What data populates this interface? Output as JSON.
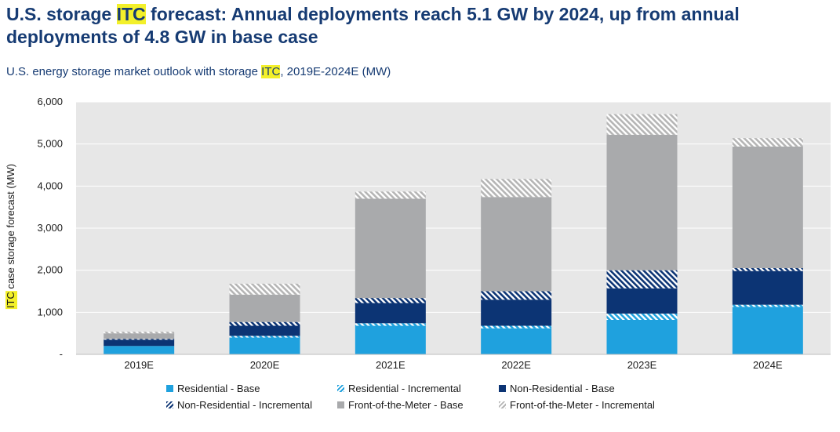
{
  "header": {
    "title_pre": "U.S. storage ",
    "title_hl": "ITC",
    "title_post": " forecast: Annual deployments reach 5.1 GW by 2024, up from annual deployments of 4.8 GW in base case",
    "subtitle_pre": "U.S. energy storage market outlook with storage ",
    "subtitle_hl": "ITC",
    "subtitle_post": ", 2019E-2024E (MW)"
  },
  "colors": {
    "title_text": "#163b73",
    "highlight": "#f3f02a",
    "plot_bg": "#e7e7e7",
    "residential": "#1fa1de",
    "non_residential": "#0c3474",
    "ftm_base": "#a9aaac",
    "ftm_incremental": "#c9c9c9"
  },
  "chart_data": {
    "type": "bar",
    "stacked": true,
    "title": "U.S. energy storage market outlook with storage ITC, 2019E-2024E (MW)",
    "ylabel_hl": "ITC",
    "ylabel_rest": " case storage forecast (MW)",
    "categories": [
      "2019E",
      "2020E",
      "2021E",
      "2022E",
      "2023E",
      "2024E"
    ],
    "ylim": [
      0,
      6000
    ],
    "yticks": [
      0,
      1000,
      2000,
      3000,
      4000,
      5000,
      6000
    ],
    "ytick_labels": [
      "-",
      "1,000",
      "2,000",
      "3,000",
      "4,000",
      "5,000",
      "6,000"
    ],
    "grid": true,
    "legend_position": "bottom",
    "series": [
      {
        "name": "Residential - Base",
        "color": "#1fa1de",
        "pattern": "solid",
        "values": [
          200,
          400,
          680,
          620,
          820,
          1130
        ]
      },
      {
        "name": "Residential - Incremental",
        "color": "#1fa1de",
        "pattern": "hatch",
        "values": [
          0,
          40,
          60,
          60,
          150,
          50
        ]
      },
      {
        "name": "Non-Residential - Base",
        "color": "#0c3474",
        "pattern": "solid",
        "values": [
          150,
          240,
          480,
          620,
          600,
          800
        ]
      },
      {
        "name": "Non-Residential - Incremental",
        "color": "#0c3474",
        "pattern": "hatch",
        "values": [
          20,
          90,
          120,
          200,
          430,
          70
        ]
      },
      {
        "name": "Front-of-the-Meter - Base",
        "color": "#a9aaac",
        "pattern": "solid",
        "values": [
          130,
          650,
          2360,
          2240,
          3220,
          2890
        ]
      },
      {
        "name": "Front-of-the-Meter - Incremental",
        "color": "#c9c9c9",
        "pattern": "hatch",
        "values": [
          40,
          260,
          170,
          430,
          490,
          200
        ]
      }
    ]
  }
}
